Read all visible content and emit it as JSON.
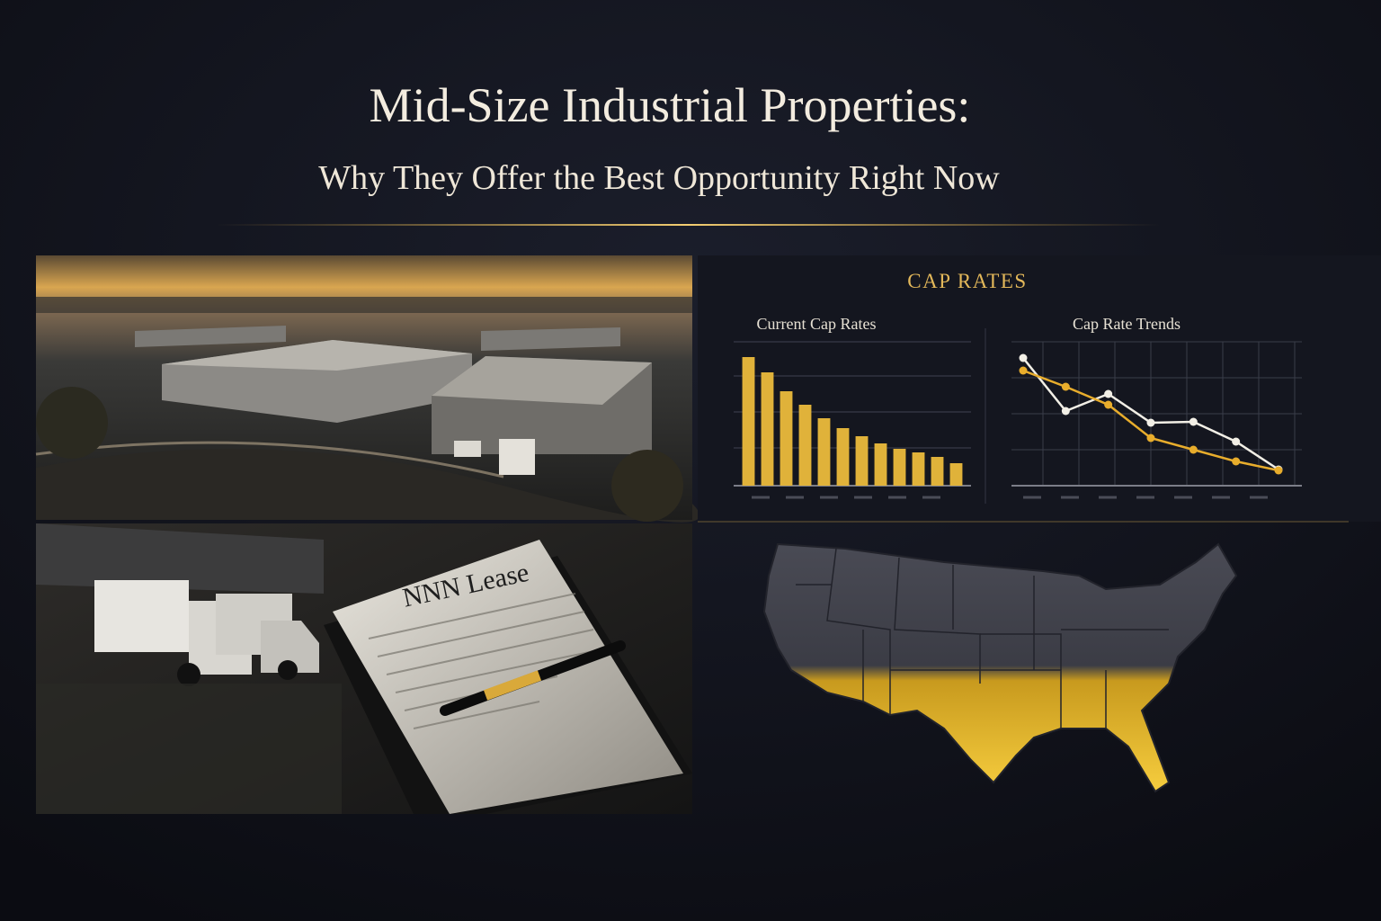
{
  "header": {
    "title": "Mid-Size Industrial Properties:",
    "subtitle": "Why They Offer the Best Opportunity Right Now"
  },
  "panels": {
    "cap_rates": {
      "heading": "CAP RATES"
    }
  },
  "images": {
    "lease_document": "NNN Lease"
  },
  "chart_data": [
    {
      "type": "bar",
      "title": "Current Cap Rates",
      "values": [
        143,
        126,
        105,
        90,
        75,
        64,
        55,
        47,
        41,
        37,
        32,
        25
      ],
      "color": "#e0b23a",
      "ylim": [
        0,
        160
      ]
    },
    {
      "type": "line",
      "title": "Cap Rate Trends",
      "series": [
        {
          "color": "#f2efe6",
          "values": [
            142,
            83,
            102,
            70,
            71,
            49,
            18
          ]
        },
        {
          "color": "#e8ad2c",
          "values": [
            128,
            110,
            90,
            53,
            40,
            27,
            17
          ]
        }
      ],
      "ylim": [
        0,
        160
      ]
    }
  ]
}
